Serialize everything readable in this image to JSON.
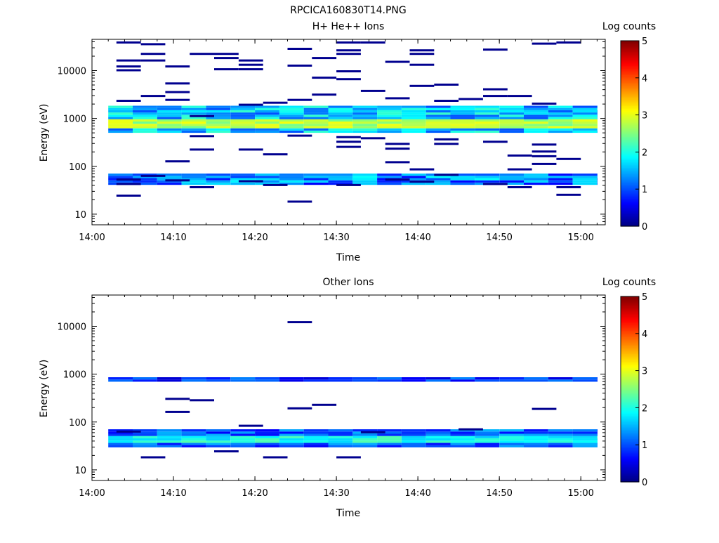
{
  "figure_title": "RPCICA160830T14.PNG",
  "colorbar_ticks": [
    "0",
    "1",
    "2",
    "3",
    "4",
    "5"
  ],
  "chart_data": [
    {
      "type": "heatmap",
      "title": "H+ He++ Ions",
      "xlabel": "Time",
      "ylabel": "Energy (eV)",
      "colorbar_label": "Log counts",
      "y_scale": "log",
      "ylim": [
        6,
        45000
      ],
      "xlim": [
        "14:00",
        "15:03"
      ],
      "x_ticks": [
        "14:00",
        "14:10",
        "14:20",
        "14:30",
        "14:40",
        "14:50",
        "15:00"
      ],
      "y_ticks": [
        "10",
        "100",
        "1000",
        "10000"
      ],
      "time_step_minutes": 3,
      "color_range": [
        0,
        5
      ],
      "bands": [
        {
          "e_low": 480,
          "e_high": 1700,
          "peak_low": 580,
          "peak_high": 900,
          "level_min": 1.0,
          "level_max": 3.1
        },
        {
          "e_low": 40,
          "e_high": 65,
          "level_min": 0.6,
          "level_max": 1.9
        }
      ],
      "sparse_cells": [
        {
          "t": "14:03",
          "e": 38000
        },
        {
          "t": "14:03",
          "e": 16000
        },
        {
          "t": "14:03",
          "e": 12000
        },
        {
          "t": "14:03",
          "e": 10000
        },
        {
          "t": "14:03",
          "e": 2300
        },
        {
          "t": "14:03",
          "e": 52
        },
        {
          "t": "14:03",
          "e": 42
        },
        {
          "t": "14:03",
          "e": 24
        },
        {
          "t": "14:06",
          "e": 35000
        },
        {
          "t": "14:06",
          "e": 22000
        },
        {
          "t": "14:06",
          "e": 16000
        },
        {
          "t": "14:06",
          "e": 2900
        },
        {
          "t": "14:06",
          "e": 62
        },
        {
          "t": "14:09",
          "e": 12000
        },
        {
          "t": "14:09",
          "e": 5300
        },
        {
          "t": "14:09",
          "e": 3500
        },
        {
          "t": "14:09",
          "e": 2400
        },
        {
          "t": "14:09",
          "e": 125
        },
        {
          "t": "14:09",
          "e": 50
        },
        {
          "t": "14:12",
          "e": 22000
        },
        {
          "t": "14:12",
          "e": 1100
        },
        {
          "t": "14:12",
          "e": 420
        },
        {
          "t": "14:12",
          "e": 220
        },
        {
          "t": "14:12",
          "e": 36
        },
        {
          "t": "14:15",
          "e": 22000
        },
        {
          "t": "14:15",
          "e": 18000
        },
        {
          "t": "14:15",
          "e": 10500
        },
        {
          "t": "14:18",
          "e": 16000
        },
        {
          "t": "14:18",
          "e": 13000
        },
        {
          "t": "14:18",
          "e": 10500
        },
        {
          "t": "14:18",
          "e": 1900
        },
        {
          "t": "14:18",
          "e": 220
        },
        {
          "t": "14:18",
          "e": 48
        },
        {
          "t": "14:21",
          "e": 2100
        },
        {
          "t": "14:21",
          "e": 175
        },
        {
          "t": "14:21",
          "e": 40
        },
        {
          "t": "14:24",
          "e": 28000
        },
        {
          "t": "14:24",
          "e": 12500
        },
        {
          "t": "14:24",
          "e": 2400
        },
        {
          "t": "14:24",
          "e": 430
        },
        {
          "t": "14:24",
          "e": 18
        },
        {
          "t": "14:27",
          "e": 18000
        },
        {
          "t": "14:27",
          "e": 7000
        },
        {
          "t": "14:27",
          "e": 3100
        },
        {
          "t": "14:30",
          "e": 38000
        },
        {
          "t": "14:30",
          "e": 26000
        },
        {
          "t": "14:30",
          "e": 22000
        },
        {
          "t": "14:30",
          "e": 9500
        },
        {
          "t": "14:30",
          "e": 6500
        },
        {
          "t": "14:30",
          "e": 400
        },
        {
          "t": "14:30",
          "e": 320
        },
        {
          "t": "14:30",
          "e": 250
        },
        {
          "t": "14:30",
          "e": 40
        },
        {
          "t": "14:33",
          "e": 38000
        },
        {
          "t": "14:33",
          "e": 3700
        },
        {
          "t": "14:33",
          "e": 380
        },
        {
          "t": "14:36",
          "e": 15000
        },
        {
          "t": "14:36",
          "e": 2600
        },
        {
          "t": "14:36",
          "e": 290
        },
        {
          "t": "14:36",
          "e": 230
        },
        {
          "t": "14:36",
          "e": 120
        },
        {
          "t": "14:36",
          "e": 52
        },
        {
          "t": "14:39",
          "e": 26000
        },
        {
          "t": "14:39",
          "e": 22000
        },
        {
          "t": "14:39",
          "e": 13000
        },
        {
          "t": "14:39",
          "e": 4700
        },
        {
          "t": "14:39",
          "e": 85
        },
        {
          "t": "14:39",
          "e": 47
        },
        {
          "t": "14:42",
          "e": 5000
        },
        {
          "t": "14:42",
          "e": 2300
        },
        {
          "t": "14:42",
          "e": 360
        },
        {
          "t": "14:42",
          "e": 290
        },
        {
          "t": "14:42",
          "e": 65
        },
        {
          "t": "14:45",
          "e": 2500
        },
        {
          "t": "14:48",
          "e": 27000
        },
        {
          "t": "14:48",
          "e": 4000
        },
        {
          "t": "14:48",
          "e": 2900
        },
        {
          "t": "14:48",
          "e": 320
        },
        {
          "t": "14:48",
          "e": 42
        },
        {
          "t": "14:51",
          "e": 2900
        },
        {
          "t": "14:51",
          "e": 165
        },
        {
          "t": "14:51",
          "e": 85
        },
        {
          "t": "14:51",
          "e": 36
        },
        {
          "t": "14:54",
          "e": 36000
        },
        {
          "t": "14:54",
          "e": 2000
        },
        {
          "t": "14:54",
          "e": 280
        },
        {
          "t": "14:54",
          "e": 200
        },
        {
          "t": "14:54",
          "e": 160
        },
        {
          "t": "14:54",
          "e": 110
        },
        {
          "t": "14:57",
          "e": 38000
        },
        {
          "t": "14:57",
          "e": 140
        },
        {
          "t": "14:57",
          "e": 36
        },
        {
          "t": "14:57",
          "e": 25
        }
      ]
    },
    {
      "type": "heatmap",
      "title": "Other Ions",
      "xlabel": "Time",
      "ylabel": "Energy (eV)",
      "colorbar_label": "Log counts",
      "y_scale": "log",
      "ylim": [
        6,
        45000
      ],
      "xlim": [
        "14:00",
        "15:03"
      ],
      "x_ticks": [
        "14:00",
        "14:10",
        "14:20",
        "14:30",
        "14:40",
        "14:50",
        "15:00"
      ],
      "y_ticks": [
        "10",
        "100",
        "1000",
        "10000"
      ],
      "time_step_minutes": 3,
      "color_range": [
        0,
        5
      ],
      "bands": [
        {
          "e_low": 650,
          "e_high": 820,
          "level_min": 0.4,
          "level_max": 1.3
        },
        {
          "e_low": 28,
          "e_high": 68,
          "peak_low": 33,
          "peak_high": 46,
          "level_min": 0.6,
          "level_max": 2.3
        }
      ],
      "sparse_cells": [
        {
          "t": "14:03",
          "e": 62
        },
        {
          "t": "14:06",
          "e": 18
        },
        {
          "t": "14:09",
          "e": 300
        },
        {
          "t": "14:09",
          "e": 160
        },
        {
          "t": "14:12",
          "e": 280
        },
        {
          "t": "14:15",
          "e": 24
        },
        {
          "t": "14:18",
          "e": 82
        },
        {
          "t": "14:21",
          "e": 18
        },
        {
          "t": "14:24",
          "e": 12000
        },
        {
          "t": "14:24",
          "e": 190
        },
        {
          "t": "14:27",
          "e": 225
        },
        {
          "t": "14:30",
          "e": 18
        },
        {
          "t": "14:33",
          "e": 60
        },
        {
          "t": "14:45",
          "e": 69
        },
        {
          "t": "14:54",
          "e": 185
        }
      ]
    }
  ]
}
